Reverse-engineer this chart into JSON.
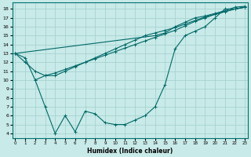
{
  "background_color": "#c8eae8",
  "grid_color": "#a0d0cc",
  "line_color": "#006868",
  "xlim": [
    -0.3,
    23.3
  ],
  "ylim": [
    3.5,
    18.7
  ],
  "xticks": [
    0,
    1,
    2,
    3,
    4,
    5,
    6,
    7,
    8,
    9,
    10,
    11,
    12,
    13,
    14,
    15,
    16,
    17,
    18,
    19,
    20,
    21,
    22,
    23
  ],
  "yticks": [
    4,
    5,
    6,
    7,
    8,
    9,
    10,
    11,
    12,
    13,
    14,
    15,
    16,
    17,
    18
  ],
  "xlabel": "Humidex (Indice chaleur)",
  "series": [
    {
      "x": [
        0,
        1,
        2,
        3,
        4,
        5,
        6,
        7,
        8,
        9,
        10,
        11,
        12,
        13,
        14,
        15,
        16,
        17,
        18,
        19,
        20,
        21,
        22,
        23
      ],
      "y": [
        13.0,
        12.5,
        10.0,
        7.0,
        4.0,
        6.0,
        4.2,
        6.5,
        6.2,
        5.2,
        5.0,
        5.0,
        5.5,
        6.0,
        7.0,
        9.5,
        13.5,
        15.0,
        15.5,
        16.0,
        17.0,
        18.0,
        18.0,
        18.2
      ]
    },
    {
      "x": [
        2,
        3,
        4,
        5,
        6,
        7,
        8,
        9,
        10,
        11,
        12,
        13,
        14,
        15,
        16,
        17,
        18,
        19,
        20,
        21,
        22,
        23
      ],
      "y": [
        10.0,
        10.5,
        10.8,
        11.2,
        11.6,
        12.0,
        12.4,
        12.8,
        13.2,
        13.6,
        14.0,
        14.4,
        14.8,
        15.2,
        15.6,
        16.1,
        16.6,
        17.0,
        17.4,
        17.7,
        18.0,
        18.2
      ]
    },
    {
      "x": [
        0,
        1,
        2,
        3,
        4,
        5,
        6,
        7,
        8,
        9,
        10,
        11,
        12,
        13,
        14,
        15,
        16,
        17,
        18,
        19,
        20,
        21,
        22,
        23
      ],
      "y": [
        13.0,
        12.0,
        11.0,
        10.5,
        10.5,
        11.0,
        11.5,
        12.0,
        12.5,
        13.0,
        13.5,
        14.0,
        14.5,
        15.0,
        15.3,
        15.6,
        15.9,
        16.3,
        16.7,
        17.1,
        17.4,
        17.7,
        18.0,
        18.2
      ]
    },
    {
      "x": [
        0,
        14,
        15,
        16,
        17,
        18,
        19,
        20,
        21,
        22,
        23
      ],
      "y": [
        13.0,
        15.0,
        15.3,
        16.0,
        16.5,
        17.0,
        17.2,
        17.5,
        17.8,
        18.2,
        18.3
      ]
    }
  ]
}
